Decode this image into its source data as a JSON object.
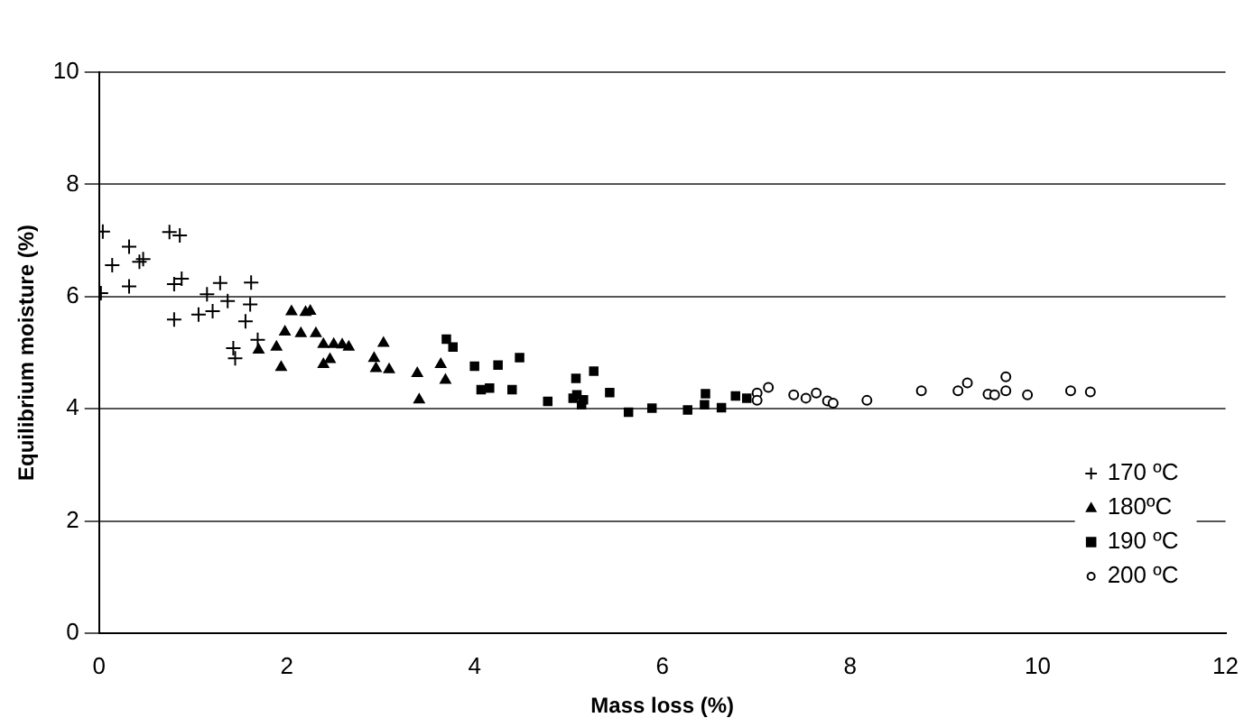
{
  "chart_data": {
    "type": "scatter",
    "xlabel": "Mass loss (%)",
    "ylabel": "Equilibrium moisture (%)",
    "xlim": [
      0,
      12
    ],
    "xticks": [
      0,
      2,
      4,
      6,
      8,
      10,
      12
    ],
    "ylim": [
      0,
      10
    ],
    "yticks": [
      0,
      2,
      4,
      6,
      8,
      10
    ],
    "grid": "y",
    "legend": "bottom right",
    "series": [
      {
        "name": "170 ºC",
        "color": "#000000",
        "marker": "cross",
        "x": [
          0.04,
          0.14,
          0.32,
          0.43,
          0.47,
          0.32,
          0.02,
          0.75,
          0.86,
          0.8,
          0.88,
          0.8,
          1.06,
          1.15,
          1.21,
          1.29,
          1.37,
          1.56,
          1.62,
          1.61,
          1.69,
          1.43,
          1.45
        ],
        "values": [
          7.16,
          6.56,
          6.89,
          6.62,
          6.67,
          6.18,
          6.06,
          7.15,
          7.09,
          6.22,
          6.32,
          5.59,
          5.68,
          6.04,
          5.74,
          6.24,
          5.92,
          5.56,
          6.25,
          5.86,
          5.23,
          5.08,
          4.9
        ]
      },
      {
        "name": "180ºC",
        "color": "#000000",
        "marker": "triangle",
        "x": [
          1.7,
          1.89,
          1.94,
          1.98,
          2.05,
          2.15,
          2.2,
          2.25,
          2.31,
          2.39,
          2.5,
          2.59,
          2.66,
          2.39,
          2.46,
          2.93,
          2.95,
          3.03,
          3.09,
          3.39,
          3.41,
          3.64,
          3.69
        ],
        "values": [
          5.05,
          5.1,
          4.74,
          5.37,
          5.73,
          5.34,
          5.72,
          5.74,
          5.34,
          5.15,
          5.15,
          5.14,
          5.1,
          4.79,
          4.88,
          4.9,
          4.72,
          5.17,
          4.7,
          4.63,
          4.16,
          4.79,
          4.51
        ]
      },
      {
        "name": "190 ºC",
        "color": "#000000",
        "marker": "square",
        "x": [
          3.7,
          3.77,
          4.0,
          4.25,
          4.48,
          4.07,
          4.16,
          4.4,
          4.78,
          5.08,
          5.05,
          5.09,
          5.16,
          5.14,
          5.27,
          5.44,
          5.64,
          5.89,
          6.27,
          6.46,
          6.45,
          6.63,
          6.78,
          6.9
        ],
        "values": [
          5.24,
          5.1,
          4.76,
          4.78,
          4.91,
          4.34,
          4.37,
          4.34,
          4.13,
          4.54,
          4.19,
          4.25,
          4.16,
          4.07,
          4.67,
          4.29,
          3.94,
          4.01,
          3.98,
          4.27,
          4.07,
          4.02,
          4.23,
          4.19
        ]
      },
      {
        "name": "200 ºC",
        "color": "#000000",
        "marker": "circle",
        "x": [
          7.01,
          7.01,
          7.13,
          7.4,
          7.53,
          7.64,
          7.76,
          7.82,
          8.18,
          8.76,
          9.15,
          9.25,
          9.47,
          9.54,
          9.66,
          9.66,
          9.89,
          10.35,
          10.56
        ],
        "values": [
          4.28,
          4.15,
          4.38,
          4.25,
          4.19,
          4.28,
          4.14,
          4.1,
          4.15,
          4.32,
          4.32,
          4.46,
          4.26,
          4.25,
          4.57,
          4.32,
          4.25,
          4.32,
          4.3
        ]
      }
    ]
  }
}
